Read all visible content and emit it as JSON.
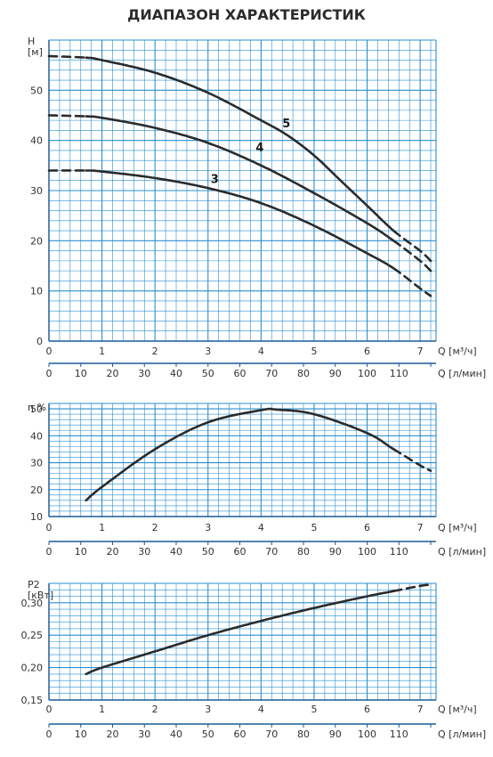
{
  "title": "ДИАПАЗОН ХАРАКТЕРИСТИК",
  "colors": {
    "grid": "#2a8fd0",
    "curve": "#2b2b2b",
    "axis": "#1a5a96"
  },
  "x_axes": {
    "q_m3h": {
      "label": "Q [м³/ч]",
      "min": 0,
      "max": 7.3,
      "ticks": [
        0,
        1,
        2,
        3,
        4,
        5,
        6,
        7
      ]
    },
    "q_lmin": {
      "label": "Q [л/мин]",
      "ticks": [
        0,
        10,
        20,
        30,
        40,
        50,
        60,
        70,
        80,
        90,
        100,
        110
      ]
    }
  },
  "chart_data": [
    {
      "type": "line",
      "ylabel": "H\n[м]",
      "ylim": [
        0,
        60
      ],
      "yticks": [
        0,
        10,
        20,
        30,
        40,
        50
      ],
      "grid": true,
      "series": [
        {
          "name": "5",
          "x": [
            0,
            0.7,
            1,
            2,
            3,
            4,
            4.5,
            5,
            5.5,
            6,
            6.5,
            7,
            7.2
          ],
          "y": [
            56.8,
            56.5,
            56,
            53.5,
            49.5,
            44,
            41,
            37,
            32,
            27,
            22,
            18,
            16
          ],
          "dashed_until": 0.7,
          "dashed_from": 6.5
        },
        {
          "name": "4",
          "x": [
            0,
            0.7,
            1,
            2,
            3,
            4,
            5,
            6,
            6.5,
            7,
            7.2
          ],
          "y": [
            45,
            44.8,
            44.5,
            42.5,
            39.5,
            35,
            29.5,
            23.5,
            20,
            16,
            14
          ],
          "dashed_until": 0.7,
          "dashed_from": 6.5
        },
        {
          "name": "3",
          "x": [
            0,
            0.7,
            1,
            2,
            3,
            4,
            5,
            6,
            6.5,
            7,
            7.2
          ],
          "y": [
            34,
            34,
            33.8,
            32.5,
            30.5,
            27.5,
            23,
            17.5,
            14.5,
            10.5,
            9
          ],
          "dashed_until": 0.7,
          "dashed_from": 6.5
        }
      ]
    },
    {
      "type": "line",
      "ylabel": "η %",
      "ylim": [
        10,
        52
      ],
      "yticks": [
        10,
        20,
        30,
        40,
        50
      ],
      "grid": true,
      "series": [
        {
          "x": [
            0.7,
            1,
            2,
            3,
            4,
            4.3,
            5,
            6,
            6.5,
            7,
            7.2
          ],
          "y": [
            16,
            21,
            35,
            45,
            49.5,
            49.7,
            48,
            41,
            35,
            29,
            27
          ],
          "dashed_from": 6.5
        }
      ]
    },
    {
      "type": "line",
      "ylabel": "P2\n[кВт]",
      "ylim": [
        0.15,
        0.33
      ],
      "yticks": [
        0.15,
        0.2,
        0.25,
        0.3
      ],
      "ytick_labels": [
        "0,15",
        "0,20",
        "0,25",
        "0,30"
      ],
      "grid": true,
      "series": [
        {
          "x": [
            0.7,
            1,
            2,
            3,
            4,
            5,
            6,
            6.5,
            7,
            7.2
          ],
          "y": [
            0.19,
            0.2,
            0.225,
            0.25,
            0.272,
            0.292,
            0.31,
            0.318,
            0.326,
            0.328
          ],
          "dashed_from": 6.5
        }
      ]
    }
  ]
}
